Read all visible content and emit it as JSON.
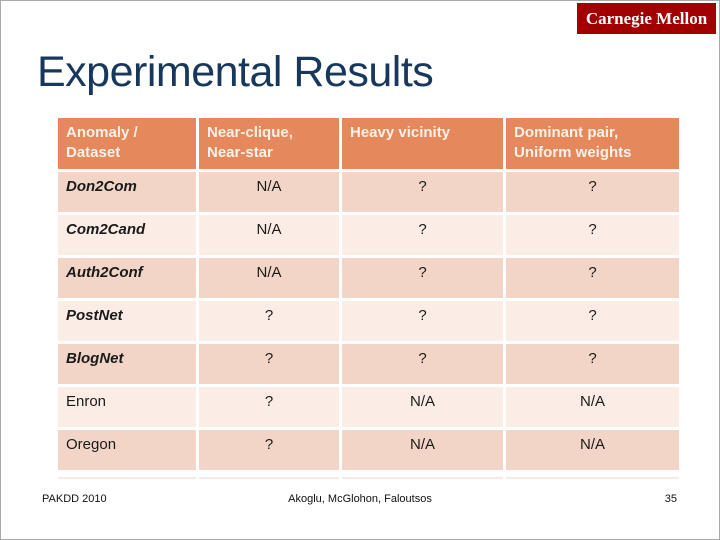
{
  "slide": {
    "title": "Experimental Results",
    "logo": "Carnegie Mellon",
    "footer": {
      "conference": "PAKDD 2010",
      "authors": "Akoglu, McGlohon, Faloutsos",
      "page_number": "35"
    }
  },
  "table": {
    "headers": [
      "Anomaly /\nDataset",
      "Near-clique,\nNear-star",
      "Heavy vicinity",
      "Dominant pair,\nUniform weights"
    ],
    "rows": [
      {
        "label": "Don2Com",
        "values": [
          "N/A",
          "?",
          "?"
        ]
      },
      {
        "label": "Com2Cand",
        "values": [
          "N/A",
          "?",
          "?"
        ]
      },
      {
        "label": "Auth2Conf",
        "values": [
          "N/A",
          "?",
          "?"
        ]
      },
      {
        "label": "PostNet",
        "values": [
          "?",
          "?",
          "?"
        ]
      },
      {
        "label": "BlogNet",
        "values": [
          "?",
          "?",
          "?"
        ]
      },
      {
        "label": "Enron",
        "values": [
          "?",
          "N/A",
          "N/A"
        ]
      },
      {
        "label": "Oregon",
        "values": [
          "?",
          "N/A",
          "N/A"
        ]
      }
    ]
  },
  "colors": {
    "banner-red": "#A00000",
    "title-navy": "#17375D",
    "header-orange": "#E5895C",
    "header-text": "#FAF2EA",
    "row-dark": "#F3D5C8",
    "row-light": "#FBECE6"
  }
}
